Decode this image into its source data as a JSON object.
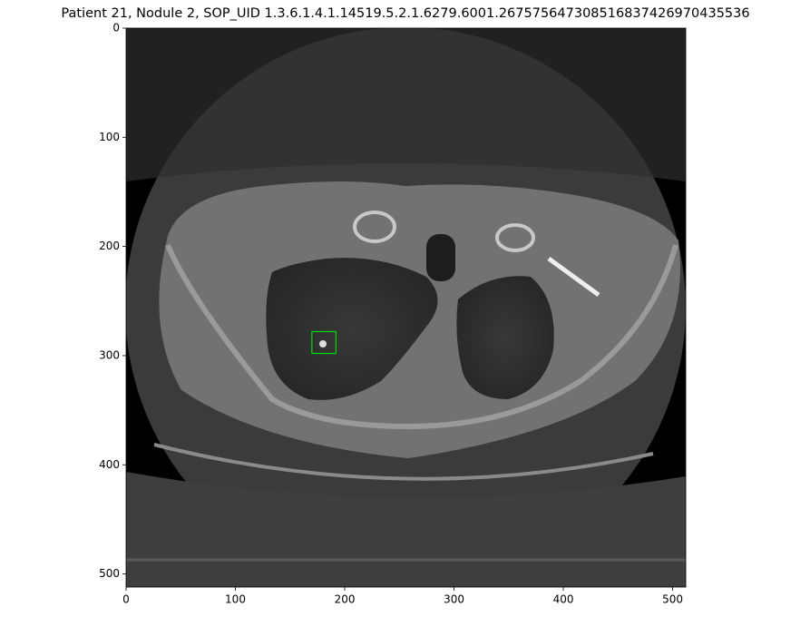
{
  "chart_data": {
    "type": "image",
    "title": "Patient 21, Nodule 2, SOP_UID 1.3.6.1.4.1.14519.5.2.1.6279.6001.267575647308516837426970435536",
    "xlim": [
      0,
      512
    ],
    "ylim": [
      512,
      0
    ],
    "xticks": [
      0,
      100,
      200,
      300,
      400,
      500
    ],
    "yticks": [
      0,
      100,
      200,
      300,
      400,
      500
    ],
    "box": {
      "x": 170,
      "y": 278,
      "width": 22,
      "height": 20,
      "color": "#00dd00"
    }
  }
}
